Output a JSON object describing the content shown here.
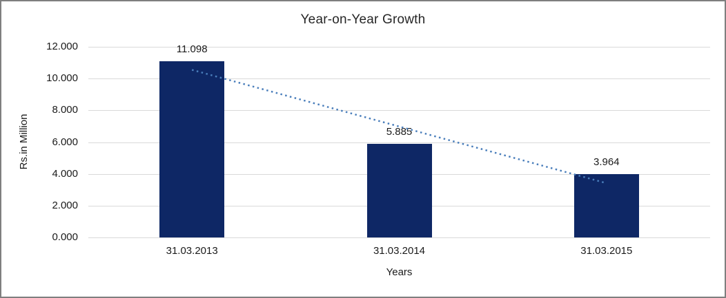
{
  "chart_data": {
    "type": "bar",
    "title": "Year-on-Year Growth",
    "xlabel": "Years",
    "ylabel": "Rs.in Million",
    "categories": [
      "31.03.2013",
      "31.03.2014",
      "31.03.2015"
    ],
    "values": [
      11.098,
      5.885,
      3.964
    ],
    "value_labels": [
      "11.098",
      "5.885",
      "3.964"
    ],
    "ylim": [
      0,
      12
    ],
    "ytick_step": 2,
    "ytick_labels": [
      "0.000",
      "2.000",
      "4.000",
      "6.000",
      "8.000",
      "10.000",
      "12.000"
    ],
    "grid": "horizontal-light-gray",
    "legend": "none",
    "trendline": {
      "kind": "linear",
      "style": "dotted",
      "start_value": 10.549,
      "end_value": 3.415
    },
    "colors": {
      "bar": "#0e2765",
      "trendline": "#4a7ebb",
      "gridline": "#d9d9d9",
      "text": "#1a1a1a",
      "background": "#ffffff",
      "frame_border": "#7f7f7f"
    }
  }
}
